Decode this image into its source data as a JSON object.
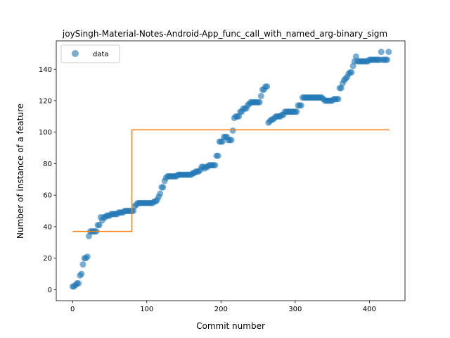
{
  "chart_data": {
    "type": "scatter",
    "title": "joySingh-Material-Notes-Android-App_func_call_with_named_arg-binary_sigm",
    "xlabel": "Commit number",
    "ylabel": "Number of instance of a feature",
    "xlim": [
      -22,
      448
    ],
    "ylim": [
      -7,
      158
    ],
    "xticks": [
      0,
      100,
      200,
      300,
      400
    ],
    "yticks": [
      0,
      20,
      40,
      60,
      80,
      100,
      120,
      140
    ],
    "grid": false,
    "legend_position": "upper-left",
    "legend": [
      {
        "label": "data"
      }
    ],
    "colors": {
      "data": "#1f77b4",
      "fit": "#ff7f0e"
    },
    "series": [
      {
        "kind": "scatter",
        "points": [
          [
            0,
            2
          ],
          [
            2,
            2
          ],
          [
            4,
            3
          ],
          [
            6,
            4
          ],
          [
            8,
            4
          ],
          [
            10,
            9
          ],
          [
            12,
            10
          ],
          [
            14,
            16
          ],
          [
            16,
            20
          ],
          [
            18,
            20
          ],
          [
            20,
            21
          ],
          [
            22,
            34
          ],
          [
            24,
            37
          ],
          [
            26,
            37
          ],
          [
            28,
            37
          ],
          [
            30,
            37
          ],
          [
            32,
            37
          ],
          [
            34,
            41
          ],
          [
            36,
            41
          ],
          [
            38,
            46
          ],
          [
            40,
            44
          ],
          [
            42,
            46
          ],
          [
            44,
            46
          ],
          [
            46,
            47
          ],
          [
            48,
            47
          ],
          [
            50,
            47
          ],
          [
            52,
            48
          ],
          [
            54,
            48
          ],
          [
            56,
            48
          ],
          [
            58,
            48
          ],
          [
            60,
            48
          ],
          [
            62,
            49
          ],
          [
            64,
            49
          ],
          [
            66,
            49
          ],
          [
            68,
            49
          ],
          [
            70,
            50
          ],
          [
            72,
            50
          ],
          [
            74,
            50
          ],
          [
            76,
            50
          ],
          [
            78,
            50
          ],
          [
            80,
            50
          ],
          [
            82,
            50
          ],
          [
            84,
            53
          ],
          [
            86,
            54
          ],
          [
            88,
            55
          ],
          [
            90,
            55
          ],
          [
            92,
            55
          ],
          [
            94,
            55
          ],
          [
            96,
            55
          ],
          [
            98,
            55
          ],
          [
            100,
            55
          ],
          [
            102,
            55
          ],
          [
            104,
            55
          ],
          [
            106,
            55
          ],
          [
            108,
            55
          ],
          [
            110,
            56
          ],
          [
            112,
            56
          ],
          [
            114,
            57
          ],
          [
            116,
            59
          ],
          [
            118,
            61
          ],
          [
            120,
            65
          ],
          [
            122,
            65
          ],
          [
            124,
            69
          ],
          [
            126,
            71
          ],
          [
            128,
            72
          ],
          [
            130,
            72
          ],
          [
            132,
            72
          ],
          [
            134,
            72
          ],
          [
            136,
            72
          ],
          [
            138,
            72
          ],
          [
            140,
            72
          ],
          [
            142,
            73
          ],
          [
            144,
            73
          ],
          [
            146,
            73
          ],
          [
            148,
            73
          ],
          [
            150,
            73
          ],
          [
            152,
            73
          ],
          [
            154,
            73
          ],
          [
            156,
            73
          ],
          [
            158,
            73
          ],
          [
            160,
            73
          ],
          [
            162,
            74
          ],
          [
            164,
            74
          ],
          [
            166,
            75
          ],
          [
            168,
            75
          ],
          [
            170,
            75
          ],
          [
            172,
            76
          ],
          [
            174,
            78
          ],
          [
            176,
            78
          ],
          [
            178,
            77
          ],
          [
            180,
            78
          ],
          [
            182,
            78
          ],
          [
            184,
            79
          ],
          [
            186,
            79
          ],
          [
            188,
            79
          ],
          [
            190,
            79
          ],
          [
            192,
            79
          ],
          [
            194,
            85
          ],
          [
            196,
            85
          ],
          [
            198,
            94
          ],
          [
            200,
            94
          ],
          [
            202,
            94
          ],
          [
            204,
            97
          ],
          [
            206,
            97
          ],
          [
            208,
            97
          ],
          [
            210,
            95
          ],
          [
            212,
            95
          ],
          [
            214,
            95
          ],
          [
            216,
            101
          ],
          [
            218,
            109
          ],
          [
            220,
            110
          ],
          [
            222,
            110
          ],
          [
            224,
            110
          ],
          [
            226,
            113
          ],
          [
            228,
            113
          ],
          [
            230,
            115
          ],
          [
            232,
            115
          ],
          [
            234,
            115
          ],
          [
            236,
            117
          ],
          [
            238,
            118
          ],
          [
            240,
            119
          ],
          [
            242,
            119
          ],
          [
            244,
            119
          ],
          [
            246,
            119
          ],
          [
            248,
            119
          ],
          [
            250,
            119
          ],
          [
            252,
            119
          ],
          [
            254,
            123
          ],
          [
            256,
            127
          ],
          [
            258,
            127
          ],
          [
            260,
            129
          ],
          [
            262,
            129
          ],
          [
            264,
            106
          ],
          [
            266,
            107
          ],
          [
            268,
            108
          ],
          [
            270,
            108
          ],
          [
            272,
            109
          ],
          [
            274,
            110
          ],
          [
            276,
            110
          ],
          [
            278,
            110
          ],
          [
            280,
            110
          ],
          [
            282,
            111
          ],
          [
            284,
            111
          ],
          [
            286,
            113
          ],
          [
            288,
            113
          ],
          [
            290,
            113
          ],
          [
            292,
            113
          ],
          [
            294,
            113
          ],
          [
            296,
            113
          ],
          [
            298,
            113
          ],
          [
            300,
            113
          ],
          [
            302,
            113
          ],
          [
            304,
            117
          ],
          [
            306,
            117
          ],
          [
            308,
            117
          ],
          [
            310,
            122
          ],
          [
            312,
            122
          ],
          [
            314,
            122
          ],
          [
            316,
            122
          ],
          [
            318,
            122
          ],
          [
            320,
            122
          ],
          [
            322,
            122
          ],
          [
            324,
            122
          ],
          [
            326,
            122
          ],
          [
            328,
            122
          ],
          [
            330,
            122
          ],
          [
            332,
            122
          ],
          [
            334,
            122
          ],
          [
            336,
            122
          ],
          [
            338,
            121
          ],
          [
            340,
            120
          ],
          [
            342,
            120
          ],
          [
            344,
            120
          ],
          [
            346,
            120
          ],
          [
            348,
            120
          ],
          [
            350,
            120
          ],
          [
            352,
            121
          ],
          [
            354,
            121
          ],
          [
            356,
            121
          ],
          [
            358,
            121
          ],
          [
            360,
            128
          ],
          [
            362,
            128
          ],
          [
            364,
            131
          ],
          [
            366,
            133
          ],
          [
            368,
            134
          ],
          [
            370,
            135
          ],
          [
            372,
            137
          ],
          [
            374,
            138
          ],
          [
            376,
            138
          ],
          [
            378,
            142
          ],
          [
            380,
            145
          ],
          [
            382,
            148
          ],
          [
            384,
            145
          ],
          [
            386,
            145
          ],
          [
            388,
            145
          ],
          [
            390,
            145
          ],
          [
            392,
            145
          ],
          [
            394,
            145
          ],
          [
            396,
            145
          ],
          [
            398,
            145
          ],
          [
            400,
            146
          ],
          [
            402,
            146
          ],
          [
            404,
            146
          ],
          [
            406,
            146
          ],
          [
            408,
            146
          ],
          [
            410,
            146
          ],
          [
            412,
            146
          ],
          [
            414,
            146
          ],
          [
            416,
            151
          ],
          [
            418,
            146
          ],
          [
            420,
            146
          ],
          [
            422,
            146
          ],
          [
            424,
            146
          ],
          [
            426,
            151
          ]
        ]
      },
      {
        "kind": "step-line",
        "points": [
          [
            0,
            37
          ],
          [
            80,
            37
          ],
          [
            80,
            101.5
          ],
          [
            427,
            101.5
          ]
        ]
      }
    ]
  }
}
